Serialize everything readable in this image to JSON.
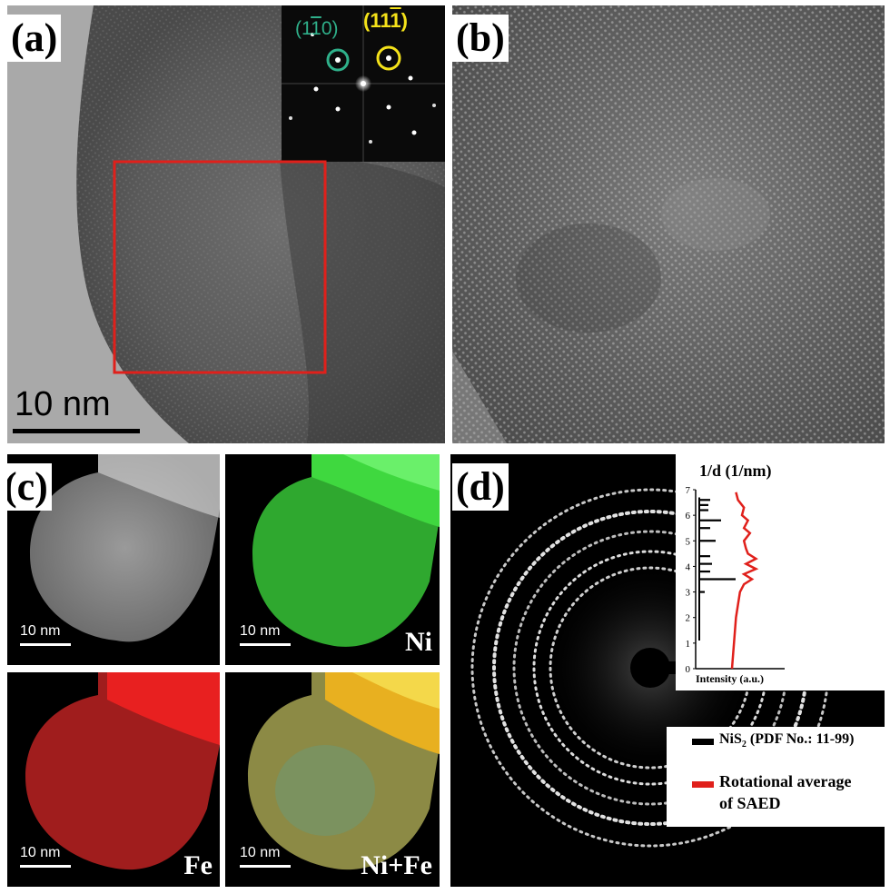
{
  "panels": {
    "a": {
      "label": "(a)",
      "scale_bar": "10 nm",
      "fft_spots": [
        {
          "label": "(1̅0)",
          "color": "#2fb08a"
        },
        {
          "label": "(111̅)",
          "color": "#f4e21a"
        }
      ],
      "fft_spot_texts": {
        "green": "(1",
        "green_bar": "1",
        "green_tail": "0)",
        "yellow": "(11",
        "yellow_bar": "1",
        "yellow_tail": ")"
      },
      "roi_color": "#e0201b"
    },
    "b": {
      "label": "(b)"
    },
    "c": {
      "label": "(c)",
      "maps": [
        {
          "scale": "10 nm",
          "element": ""
        },
        {
          "scale": "10 nm",
          "element": "Ni"
        },
        {
          "scale": "10 nm",
          "element": "Fe"
        },
        {
          "scale": "10 nm",
          "element": "Ni+Fe"
        }
      ]
    },
    "d": {
      "label": "(d)",
      "axis_title": "1/d (1/nm)",
      "x_axis_label": "Intensity (a.u.)",
      "y_ticks": [
        "0",
        "1",
        "2",
        "3",
        "4",
        "5",
        "6",
        "7"
      ],
      "legend": [
        {
          "label": "NiS",
          "sub": "2",
          "tail": " (PDF No.: 11-99)",
          "color": "#000000"
        },
        {
          "label": "Rotational average",
          "line2": "of SAED",
          "color": "#e0201b"
        }
      ]
    }
  },
  "chart_data": {
    "type": "line",
    "title": "",
    "ylabel": "1/d (1/nm)",
    "xlabel": "Intensity (a.u.)",
    "ylim": [
      0,
      7
    ],
    "series": [
      {
        "name": "NiS2 (PDF No.: 11-99)",
        "type": "stick",
        "color": "#000000",
        "y": [
          3.0,
          3.5,
          3.8,
          4.1,
          4.4,
          5.0,
          5.5,
          5.8,
          6.2,
          6.4,
          6.6
        ],
        "x": [
          0.15,
          1.0,
          0.3,
          0.35,
          0.3,
          0.45,
          0.3,
          0.6,
          0.25,
          0.25,
          0.3
        ]
      },
      {
        "name": "Rotational average of SAED",
        "type": "line",
        "color": "#e0201b",
        "y": [
          0,
          0.5,
          1.0,
          1.5,
          2.0,
          2.5,
          3.0,
          3.3,
          3.5,
          3.7,
          3.9,
          4.1,
          4.3,
          4.5,
          4.7,
          5.0,
          5.3,
          5.5,
          5.8,
          6.0,
          6.3,
          6.6,
          6.9
        ],
        "x": [
          0.0,
          0.05,
          0.1,
          0.15,
          0.2,
          0.3,
          0.4,
          0.6,
          1.0,
          0.6,
          1.2,
          0.7,
          1.2,
          0.8,
          0.7,
          0.6,
          0.9,
          0.6,
          0.8,
          0.5,
          0.6,
          0.3,
          0.2
        ]
      }
    ]
  }
}
